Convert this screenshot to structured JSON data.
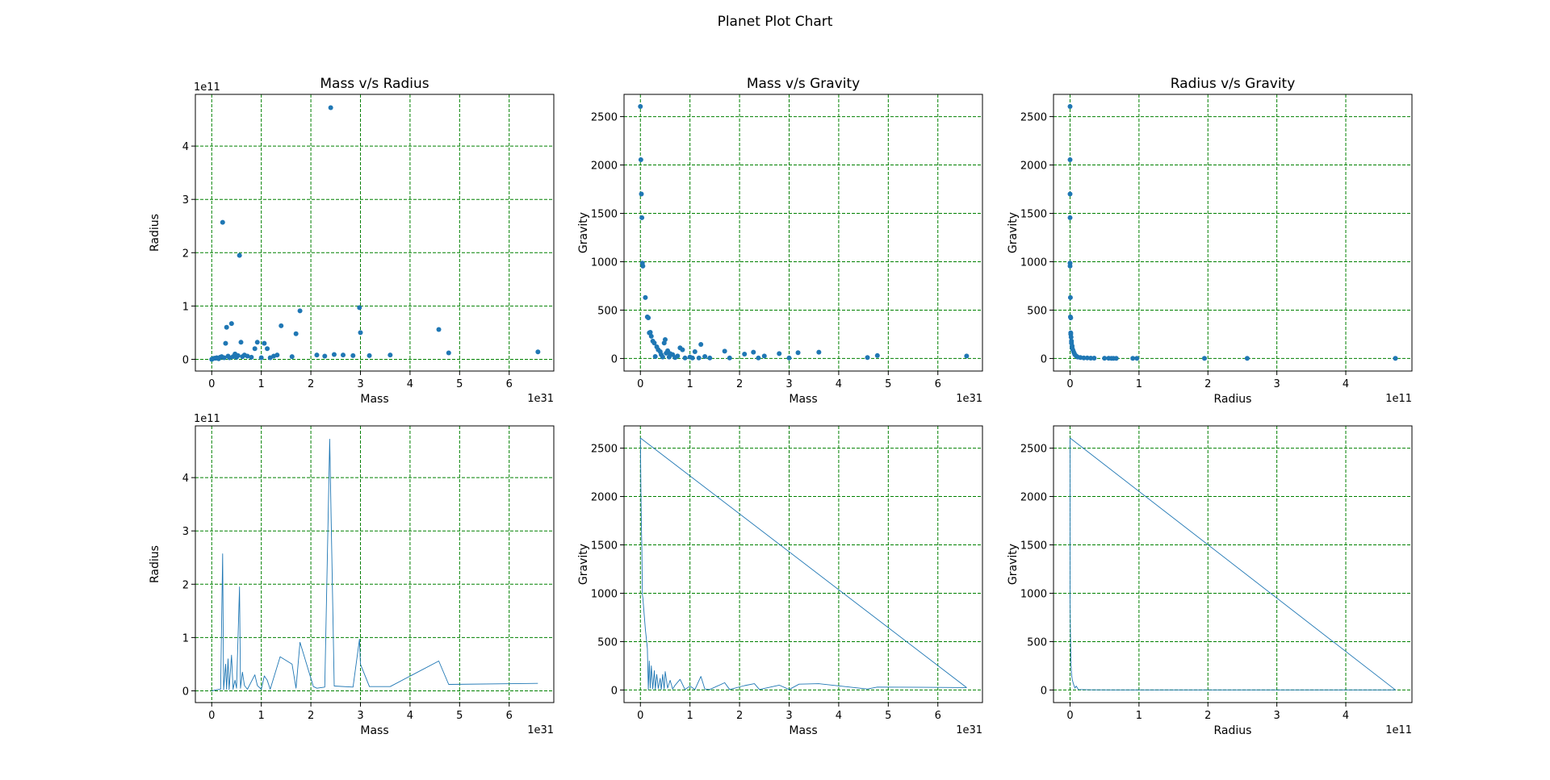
{
  "page": {
    "suptitle": "Planet Plot Chart"
  },
  "chart_data": [
    {
      "type": "scatter",
      "title": "Mass v/s Radius",
      "xlabel": "Mass",
      "ylabel": "Radius",
      "x_offset_text": "1e31",
      "y_offset_text": "1e11",
      "xlim": [
        -0.33,
        6.9
      ],
      "ylim": [
        -0.22,
        4.97
      ],
      "xticks": [
        0,
        1,
        2,
        3,
        4,
        5,
        6
      ],
      "yticks": [
        0,
        1,
        2,
        3,
        4
      ],
      "grid": true,
      "points": [
        [
          0.0,
          0.0
        ],
        [
          0.02,
          0.01
        ],
        [
          0.05,
          0.02
        ],
        [
          0.08,
          0.02
        ],
        [
          0.1,
          0.03
        ],
        [
          0.14,
          0.01
        ],
        [
          0.17,
          0.04
        ],
        [
          0.2,
          0.05
        ],
        [
          0.22,
          2.57
        ],
        [
          0.25,
          0.03
        ],
        [
          0.28,
          0.3
        ],
        [
          0.3,
          0.6
        ],
        [
          0.33,
          0.06
        ],
        [
          0.36,
          0.03
        ],
        [
          0.4,
          0.67
        ],
        [
          0.43,
          0.05
        ],
        [
          0.47,
          0.1
        ],
        [
          0.5,
          0.04
        ],
        [
          0.53,
          0.07
        ],
        [
          0.56,
          1.95
        ],
        [
          0.59,
          0.32
        ],
        [
          0.62,
          0.05
        ],
        [
          0.66,
          0.08
        ],
        [
          0.72,
          0.06
        ],
        [
          0.8,
          0.04
        ],
        [
          0.87,
          0.2
        ],
        [
          0.92,
          0.32
        ],
        [
          1.0,
          0.03
        ],
        [
          1.06,
          0.3
        ],
        [
          1.12,
          0.2
        ],
        [
          1.18,
          0.03
        ],
        [
          1.25,
          0.06
        ],
        [
          1.32,
          0.08
        ],
        [
          1.4,
          0.63
        ],
        [
          1.62,
          0.05
        ],
        [
          1.7,
          0.48
        ],
        [
          1.78,
          0.91
        ],
        [
          2.12,
          0.08
        ],
        [
          2.28,
          0.06
        ],
        [
          2.4,
          4.72
        ],
        [
          2.47,
          0.09
        ],
        [
          2.65,
          0.08
        ],
        [
          2.85,
          0.07
        ],
        [
          2.98,
          0.97
        ],
        [
          3.0,
          0.5
        ],
        [
          3.18,
          0.07
        ],
        [
          3.6,
          0.08
        ],
        [
          4.58,
          0.56
        ],
        [
          4.78,
          0.12
        ],
        [
          6.58,
          0.14
        ]
      ]
    },
    {
      "type": "scatter",
      "title": "Mass v/s Gravity",
      "xlabel": "Mass",
      "ylabel": "Gravity",
      "x_offset_text": "1e31",
      "xlim": [
        -0.33,
        6.9
      ],
      "ylim": [
        -130,
        2730
      ],
      "xticks": [
        0,
        1,
        2,
        3,
        4,
        5,
        6
      ],
      "yticks": [
        0,
        500,
        1000,
        1500,
        2000,
        2500
      ],
      "grid": true,
      "points": [
        [
          0.0,
          2605
        ],
        [
          0.01,
          2055
        ],
        [
          0.02,
          1700
        ],
        [
          0.03,
          1455
        ],
        [
          0.04,
          985
        ],
        [
          0.05,
          955
        ],
        [
          0.1,
          630
        ],
        [
          0.14,
          430
        ],
        [
          0.16,
          420
        ],
        [
          0.18,
          265
        ],
        [
          0.2,
          270
        ],
        [
          0.22,
          230
        ],
        [
          0.25,
          180
        ],
        [
          0.28,
          160
        ],
        [
          0.3,
          20
        ],
        [
          0.33,
          120
        ],
        [
          0.36,
          90
        ],
        [
          0.4,
          70
        ],
        [
          0.42,
          40
        ],
        [
          0.45,
          15
        ],
        [
          0.48,
          160
        ],
        [
          0.5,
          195
        ],
        [
          0.52,
          55
        ],
        [
          0.55,
          80
        ],
        [
          0.58,
          15
        ],
        [
          0.6,
          50
        ],
        [
          0.65,
          40
        ],
        [
          0.7,
          10
        ],
        [
          0.75,
          25
        ],
        [
          0.8,
          110
        ],
        [
          0.85,
          90
        ],
        [
          0.9,
          5
        ],
        [
          1.0,
          15
        ],
        [
          1.05,
          5
        ],
        [
          1.1,
          70
        ],
        [
          1.18,
          5
        ],
        [
          1.22,
          145
        ],
        [
          1.3,
          20
        ],
        [
          1.4,
          5
        ],
        [
          1.7,
          75
        ],
        [
          1.8,
          5
        ],
        [
          2.1,
          45
        ],
        [
          2.28,
          65
        ],
        [
          2.38,
          5
        ],
        [
          2.5,
          25
        ],
        [
          2.8,
          50
        ],
        [
          3.0,
          5
        ],
        [
          3.18,
          60
        ],
        [
          3.6,
          65
        ],
        [
          4.58,
          10
        ],
        [
          4.78,
          30
        ],
        [
          6.58,
          25
        ]
      ]
    },
    {
      "type": "scatter",
      "title": "Radius v/s Gravity",
      "xlabel": "Radius",
      "ylabel": "Gravity",
      "x_offset_text": "1e11",
      "xlim": [
        -0.24,
        4.96
      ],
      "ylim": [
        -130,
        2730
      ],
      "xticks": [
        0,
        1,
        2,
        3,
        4
      ],
      "yticks": [
        0,
        500,
        1000,
        1500,
        2000,
        2500
      ],
      "grid": true,
      "points": [
        [
          0.0,
          2605
        ],
        [
          0.0,
          2055
        ],
        [
          0.0,
          1700
        ],
        [
          0.0,
          1455
        ],
        [
          0.0,
          985
        ],
        [
          0.0,
          955
        ],
        [
          0.005,
          630
        ],
        [
          0.005,
          430
        ],
        [
          0.01,
          420
        ],
        [
          0.01,
          265
        ],
        [
          0.01,
          250
        ],
        [
          0.015,
          220
        ],
        [
          0.02,
          180
        ],
        [
          0.02,
          160
        ],
        [
          0.03,
          130
        ],
        [
          0.03,
          110
        ],
        [
          0.04,
          90
        ],
        [
          0.05,
          70
        ],
        [
          0.06,
          55
        ],
        [
          0.07,
          40
        ],
        [
          0.09,
          25
        ],
        [
          0.11,
          15
        ],
        [
          0.15,
          10
        ],
        [
          0.2,
          5
        ],
        [
          0.25,
          5
        ],
        [
          0.3,
          3
        ],
        [
          0.35,
          3
        ],
        [
          0.5,
          2
        ],
        [
          0.56,
          2
        ],
        [
          0.6,
          1
        ],
        [
          0.63,
          1
        ],
        [
          0.67,
          1
        ],
        [
          0.91,
          1
        ],
        [
          0.97,
          1
        ],
        [
          1.95,
          1
        ],
        [
          2.57,
          1
        ],
        [
          4.72,
          1
        ]
      ]
    },
    {
      "type": "line",
      "xlabel": "Mass",
      "ylabel": "Radius",
      "x_offset_text": "1e31",
      "y_offset_text": "1e11",
      "xlim": [
        -0.33,
        6.9
      ],
      "ylim": [
        -0.22,
        4.97
      ],
      "xticks": [
        0,
        1,
        2,
        3,
        4,
        5,
        6
      ],
      "yticks": [
        0,
        1,
        2,
        3,
        4
      ],
      "grid": true,
      "points": [
        [
          0.0,
          0.0
        ],
        [
          0.1,
          0.02
        ],
        [
          0.18,
          0.03
        ],
        [
          0.22,
          2.57
        ],
        [
          0.24,
          0.02
        ],
        [
          0.28,
          0.5
        ],
        [
          0.3,
          0.03
        ],
        [
          0.33,
          0.6
        ],
        [
          0.35,
          0.02
        ],
        [
          0.4,
          0.67
        ],
        [
          0.43,
          0.03
        ],
        [
          0.47,
          0.2
        ],
        [
          0.5,
          0.05
        ],
        [
          0.56,
          1.95
        ],
        [
          0.58,
          0.05
        ],
        [
          0.62,
          0.35
        ],
        [
          0.66,
          0.1
        ],
        [
          0.72,
          0.03
        ],
        [
          0.87,
          0.3
        ],
        [
          0.92,
          0.1
        ],
        [
          1.0,
          0.03
        ],
        [
          1.06,
          0.28
        ],
        [
          1.12,
          0.2
        ],
        [
          1.18,
          0.03
        ],
        [
          1.38,
          0.64
        ],
        [
          1.62,
          0.5
        ],
        [
          1.7,
          0.05
        ],
        [
          1.78,
          0.91
        ],
        [
          2.05,
          0.08
        ],
        [
          2.12,
          0.05
        ],
        [
          2.28,
          0.07
        ],
        [
          2.38,
          4.72
        ],
        [
          2.47,
          0.09
        ],
        [
          2.85,
          0.07
        ],
        [
          2.98,
          0.97
        ],
        [
          3.0,
          0.5
        ],
        [
          3.18,
          0.08
        ],
        [
          3.6,
          0.08
        ],
        [
          4.58,
          0.56
        ],
        [
          4.78,
          0.12
        ],
        [
          6.58,
          0.14
        ]
      ]
    },
    {
      "type": "line",
      "xlabel": "Mass",
      "ylabel": "Gravity",
      "x_offset_text": "1e31",
      "xlim": [
        -0.33,
        6.9
      ],
      "ylim": [
        -130,
        2730
      ],
      "xticks": [
        0,
        1,
        2,
        3,
        4,
        5,
        6
      ],
      "yticks": [
        0,
        500,
        1000,
        1500,
        2000,
        2500
      ],
      "grid": true,
      "points": [
        [
          0.0,
          2605
        ],
        [
          0.01,
          2055
        ],
        [
          0.02,
          1700
        ],
        [
          0.03,
          1455
        ],
        [
          0.04,
          985
        ],
        [
          0.05,
          955
        ],
        [
          0.1,
          630
        ],
        [
          0.14,
          430
        ],
        [
          0.16,
          5
        ],
        [
          0.18,
          300
        ],
        [
          0.2,
          20
        ],
        [
          0.22,
          250
        ],
        [
          0.25,
          10
        ],
        [
          0.28,
          200
        ],
        [
          0.3,
          5
        ],
        [
          0.33,
          160
        ],
        [
          0.36,
          15
        ],
        [
          0.4,
          120
        ],
        [
          0.42,
          5
        ],
        [
          0.45,
          160
        ],
        [
          0.48,
          10
        ],
        [
          0.5,
          190
        ],
        [
          0.55,
          20
        ],
        [
          0.6,
          100
        ],
        [
          0.65,
          10
        ],
        [
          0.7,
          50
        ],
        [
          0.8,
          110
        ],
        [
          0.9,
          5
        ],
        [
          1.0,
          40
        ],
        [
          1.1,
          5
        ],
        [
          1.22,
          140
        ],
        [
          1.3,
          10
        ],
        [
          1.4,
          5
        ],
        [
          1.7,
          75
        ],
        [
          1.8,
          5
        ],
        [
          2.1,
          45
        ],
        [
          2.3,
          65
        ],
        [
          2.4,
          5
        ],
        [
          2.8,
          50
        ],
        [
          3.0,
          5
        ],
        [
          3.2,
          60
        ],
        [
          3.6,
          65
        ],
        [
          4.58,
          10
        ],
        [
          4.78,
          30
        ],
        [
          6.58,
          25
        ],
        [
          0.0,
          2605
        ]
      ]
    },
    {
      "type": "line",
      "xlabel": "Radius",
      "ylabel": "Gravity",
      "x_offset_text": "1e11",
      "xlim": [
        -0.24,
        4.96
      ],
      "ylim": [
        -130,
        2730
      ],
      "xticks": [
        0,
        1,
        2,
        3,
        4
      ],
      "yticks": [
        0,
        500,
        1000,
        1500,
        2000,
        2500
      ],
      "grid": true,
      "points": [
        [
          0.0,
          2605
        ],
        [
          0.0,
          2055
        ],
        [
          0.0,
          1700
        ],
        [
          0.0,
          1455
        ],
        [
          0.0,
          985
        ],
        [
          0.0,
          955
        ],
        [
          0.005,
          630
        ],
        [
          0.01,
          420
        ],
        [
          0.015,
          250
        ],
        [
          0.02,
          180
        ],
        [
          0.03,
          110
        ],
        [
          0.05,
          60
        ],
        [
          0.07,
          20
        ],
        [
          0.09,
          40
        ],
        [
          0.12,
          5
        ],
        [
          0.3,
          2
        ],
        [
          0.6,
          1
        ],
        [
          0.97,
          1
        ],
        [
          1.95,
          1
        ],
        [
          2.57,
          1
        ],
        [
          4.72,
          1
        ],
        [
          0.0,
          2605
        ]
      ]
    }
  ]
}
